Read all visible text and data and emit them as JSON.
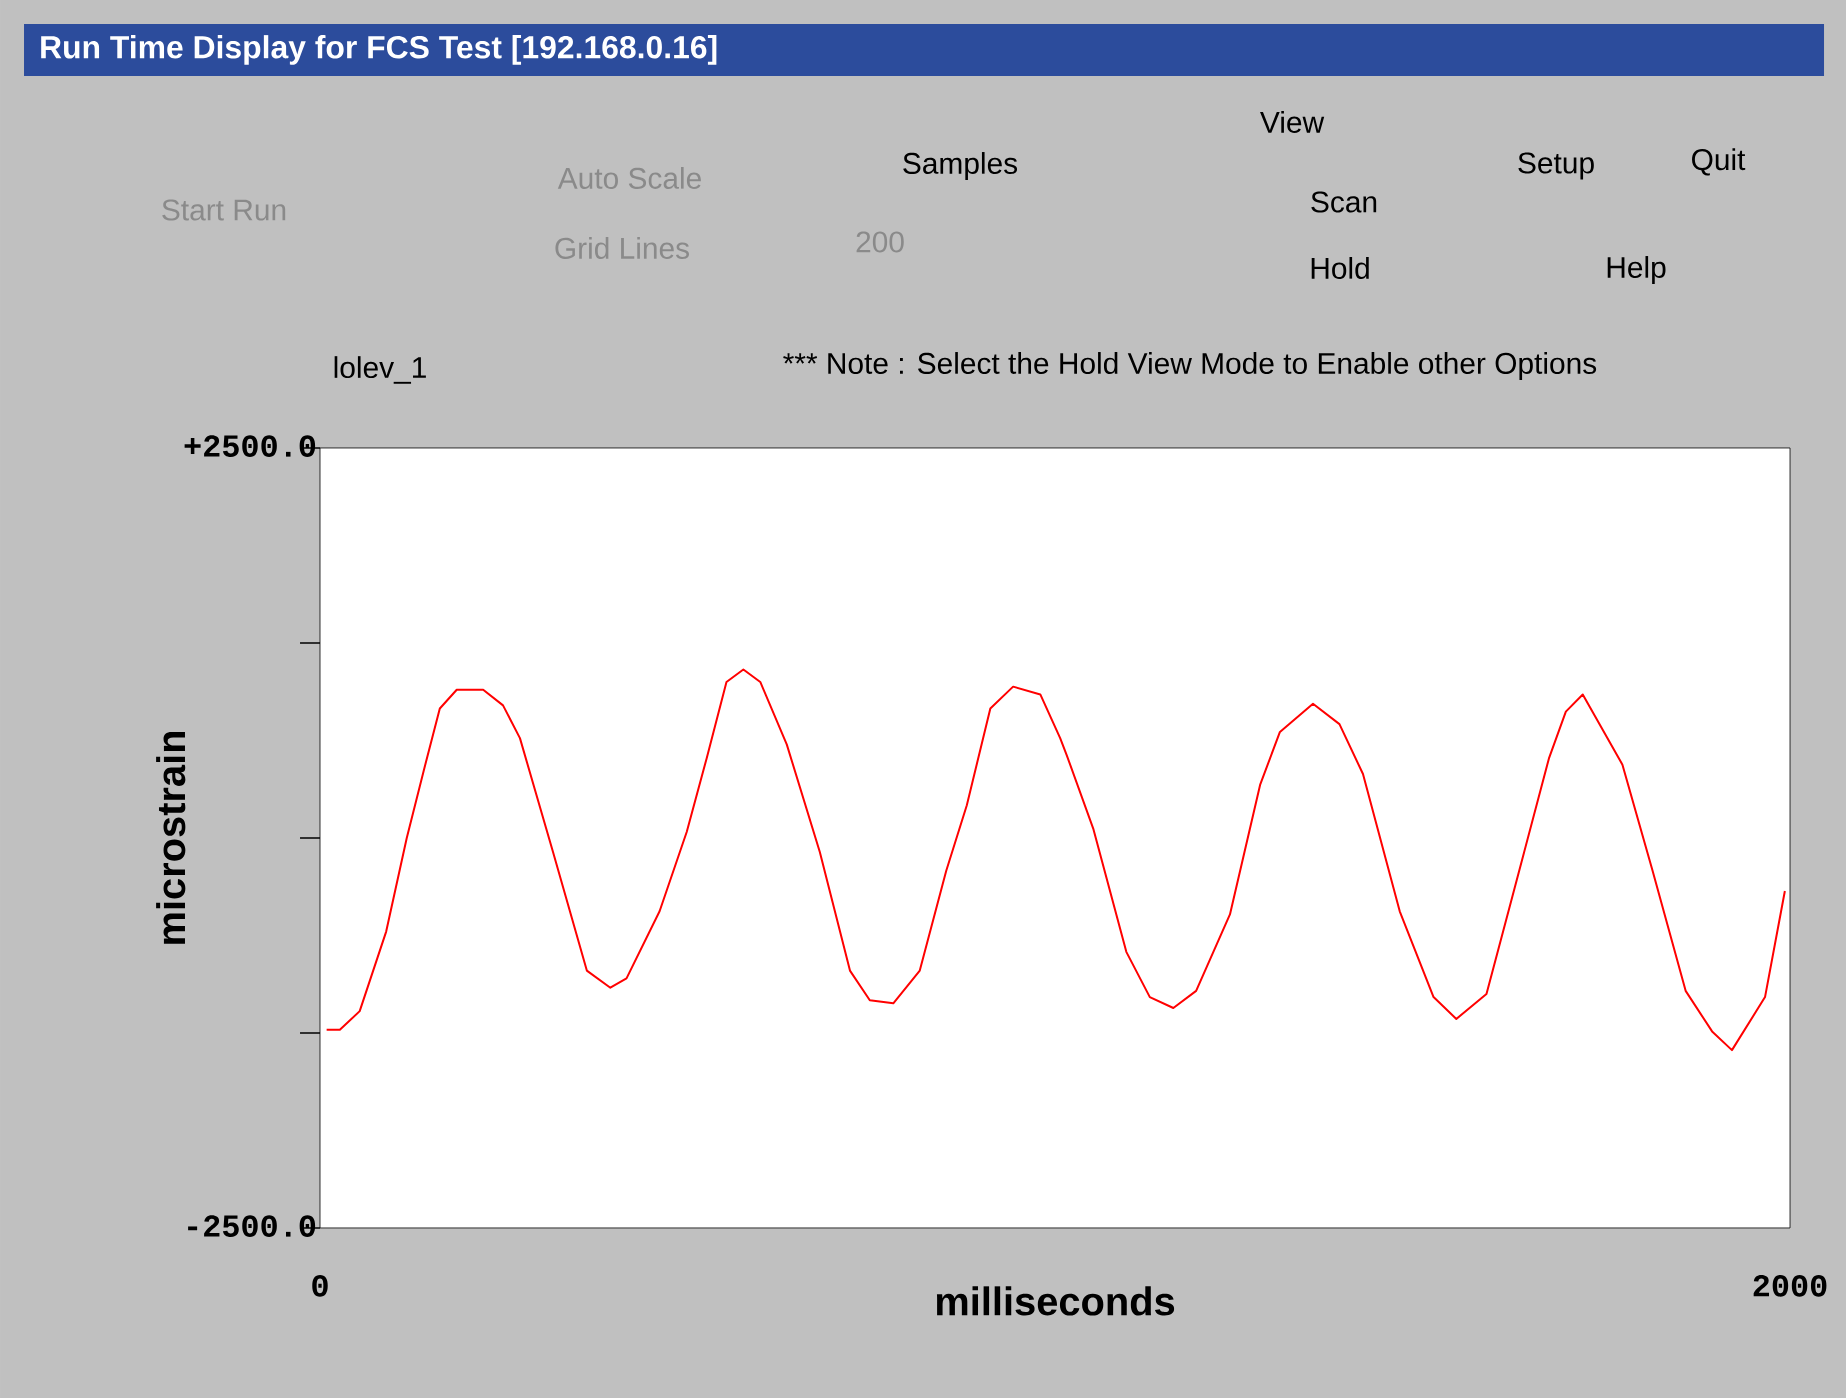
{
  "chart_data": {
    "type": "line",
    "title": "Run Time Display for FCS Test [192.168.0.16]",
    "xlabel": "milliseconds",
    "ylabel": "microstrain",
    "xlim": [
      0,
      2000
    ],
    "ylim": [
      -2500,
      2500
    ],
    "xticks": [
      0,
      2000
    ],
    "yticks": [
      {
        "value": 2500,
        "label": "+2500.0"
      },
      {
        "value": 1250,
        "label": null
      },
      {
        "value": 0,
        "label": null
      },
      {
        "value": -1250,
        "label": null
      },
      {
        "value": -2500,
        "label": "-2500.0"
      }
    ],
    "annotations": [
      "Start Run",
      "Auto Scale",
      "Grid Lines",
      "Samples",
      "200",
      "View",
      "Scan",
      "Hold",
      "Setup",
      "Quit",
      "Help",
      "lolev_1",
      "*** Note : Select the Hold View Mode to Enable other Options"
    ],
    "series": [
      {
        "color": "#ff0000",
        "x": [
          9,
          27,
          54,
          90,
          118,
          141,
          163,
          186,
          222,
          249,
          272,
          317,
          363,
          395,
          417,
          462,
          499,
          526,
          553,
          576,
          599,
          635,
          680,
          721,
          748,
          780,
          816,
          852,
          880,
          912,
          943,
          980,
          1007,
          1016,
          1052,
          1097,
          1129,
          1161,
          1192,
          1238,
          1279,
          1306,
          1351,
          1387,
          1419,
          1469,
          1515,
          1546,
          1587,
          1622,
          1672,
          1695,
          1718,
          1772,
          1813,
          1858,
          1894,
          1921,
          1966,
          1993
        ],
        "values": [
          -1230,
          -1230,
          -1110,
          -600,
          0,
          430,
          830,
          950,
          950,
          850,
          640,
          -90,
          -850,
          -960,
          -900,
          -470,
          40,
          510,
          1000,
          1080,
          1000,
          600,
          -90,
          -850,
          -1040,
          -1060,
          -850,
          -210,
          210,
          830,
          970,
          920,
          640,
          530,
          60,
          -730,
          -1020,
          -1090,
          -980,
          -490,
          340,
          680,
          860,
          730,
          410,
          -470,
          -1020,
          -1160,
          -1000,
          -380,
          510,
          810,
          920,
          470,
          -210,
          -980,
          -1240,
          -1360,
          -1020,
          -340
        ]
      }
    ]
  }
}
